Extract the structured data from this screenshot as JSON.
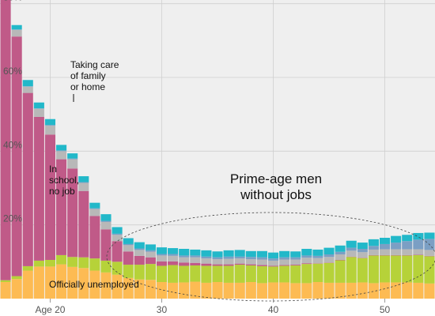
{
  "chart_data": {
    "type": "bar",
    "stacked": true,
    "x_ticks": [
      {
        "value": 20,
        "label": "Age 20"
      },
      {
        "value": 30,
        "label": "30"
      },
      {
        "value": 40,
        "label": "40"
      },
      {
        "value": 50,
        "label": "50"
      }
    ],
    "y_ticks": [
      {
        "value": 20,
        "label": "20%"
      },
      {
        "value": 40,
        "label": "40%"
      },
      {
        "value": 60,
        "label": "60%"
      },
      {
        "value": 80,
        "label": "80%"
      }
    ],
    "xlim": [
      15.5,
      54.5
    ],
    "ylim": [
      0,
      81
    ],
    "grid": true,
    "ages": [
      16,
      17,
      18,
      19,
      20,
      21,
      22,
      23,
      24,
      25,
      26,
      27,
      28,
      29,
      30,
      31,
      32,
      33,
      34,
      35,
      36,
      37,
      38,
      39,
      40,
      41,
      42,
      43,
      44,
      45,
      46,
      47,
      48,
      49,
      50,
      51,
      52,
      53,
      54
    ],
    "series": [
      {
        "key": "unemployed",
        "color": "#fdbb53",
        "values": [
          4.5,
          5.3,
          7.6,
          8.7,
          8.7,
          9.3,
          8.6,
          8.3,
          7.6,
          7.1,
          6.5,
          5.6,
          5.2,
          5.1,
          4.5,
          4.3,
          4.4,
          4.6,
          4.3,
          4.5,
          4.3,
          4.3,
          4.5,
          4.2,
          4.4,
          4.4,
          4.2,
          4.2,
          4.5,
          4.3,
          4.3,
          4.3,
          4.4,
          4.2,
          4.4,
          4.4,
          4.4,
          4.3,
          4.1
        ]
      },
      {
        "key": "disabled",
        "color": "#b6d239",
        "values": [
          0.5,
          0.8,
          1.2,
          1.6,
          1.8,
          2.5,
          2.7,
          2.9,
          3.3,
          3.2,
          3.5,
          3.6,
          4.0,
          4.3,
          4.4,
          4.8,
          4.5,
          4.4,
          4.6,
          4.4,
          4.6,
          4.9,
          4.5,
          4.6,
          4.3,
          4.5,
          4.8,
          5.2,
          5.0,
          5.4,
          6.1,
          7.0,
          6.6,
          7.5,
          7.3,
          7.3,
          7.3,
          7.5,
          7.4
        ]
      },
      {
        "key": "school",
        "color": "#c05a88",
        "values": [
          77,
          65,
          47,
          39,
          34,
          26,
          24,
          18,
          11.5,
          8.5,
          5.6,
          3.6,
          2.4,
          1.8,
          1.2,
          1.0,
          0.9,
          0.7,
          0.6,
          0.4,
          0.4,
          0.3,
          0.3,
          0.3,
          0.2,
          0.2,
          0.2,
          0.2,
          0.1,
          0.1,
          0.1,
          0.1,
          0.1,
          0.1,
          0.1,
          0.1,
          0.1,
          0.1,
          0.1
        ]
      },
      {
        "key": "other",
        "color": "#b8b8b8",
        "values": [
          2,
          1.8,
          1.7,
          2.2,
          2.4,
          2.2,
          2.5,
          2.2,
          1.9,
          2.0,
          1.7,
          1.7,
          1.6,
          1.5,
          1.6,
          1.5,
          1.4,
          1.5,
          1.4,
          1.4,
          1.5,
          1.4,
          1.4,
          1.5,
          1.4,
          1.5,
          1.4,
          1.5,
          1.4,
          1.5,
          1.5,
          1.6,
          1.5,
          1.5,
          1.6,
          1.6,
          1.6,
          1.5,
          1.6
        ]
      },
      {
        "key": "caregiving",
        "color": "#7b9fc4",
        "values": [
          0.1,
          0.1,
          0.1,
          0.1,
          0.2,
          0.2,
          0.2,
          0.2,
          0.2,
          0.3,
          0.3,
          0.3,
          0.4,
          0.4,
          0.4,
          0.5,
          0.5,
          0.5,
          0.5,
          0.5,
          0.6,
          0.5,
          0.6,
          0.6,
          0.6,
          0.6,
          0.6,
          0.6,
          0.6,
          0.7,
          0.7,
          0.8,
          0.9,
          1.0,
          1.4,
          1.8,
          2.2,
          2.6,
          3.0
        ]
      },
      {
        "key": "retired",
        "color": "#22b8c9",
        "values": [
          1.5,
          1.2,
          1.7,
          1.6,
          1.6,
          1.5,
          1.4,
          1.6,
          1.5,
          1.8,
          1.8,
          1.6,
          1.7,
          1.6,
          1.8,
          1.6,
          1.8,
          1.6,
          1.7,
          1.6,
          1.7,
          1.8,
          1.6,
          1.7,
          1.6,
          1.7,
          1.6,
          1.8,
          1.7,
          1.8,
          1.7,
          1.9,
          1.7,
          1.8,
          1.7,
          1.8,
          1.7,
          1.8,
          1.7
        ]
      }
    ],
    "annotations": {
      "care": {
        "lines": [
          "Taking care",
          "of family",
          "or home"
        ]
      },
      "school": {
        "lines": [
          "In",
          "school,",
          "no job"
        ]
      },
      "unemployed": {
        "text": "Officially unemployed"
      },
      "primeage": {
        "lines": [
          "Prime-age men",
          "without jobs"
        ]
      }
    }
  }
}
